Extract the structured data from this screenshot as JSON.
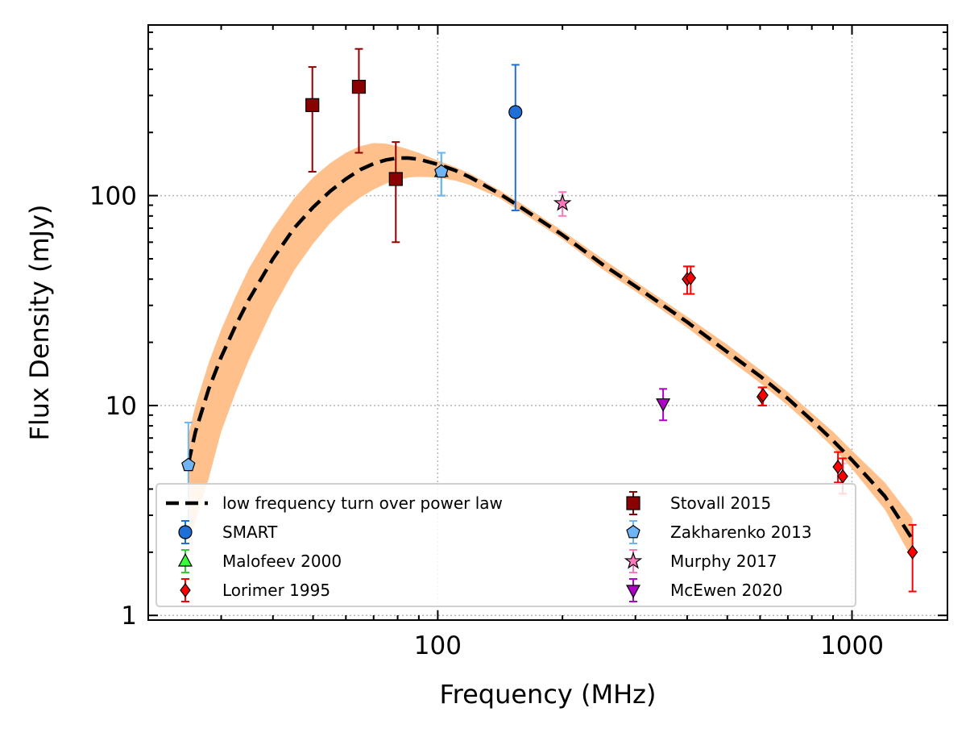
{
  "chart_data": {
    "type": "scatter",
    "xlabel": "Frequency (MHz)",
    "ylabel": "Flux Density (mJy)",
    "xscale": "log",
    "yscale": "log",
    "xlim": [
      20,
      1700
    ],
    "ylim": [
      0.95,
      650
    ],
    "xticks": [
      {
        "value": 100,
        "label": "100"
      },
      {
        "value": 1000,
        "label": "1000"
      }
    ],
    "yticks": [
      {
        "value": 1,
        "label": "1"
      },
      {
        "value": 10,
        "label": "10"
      },
      {
        "value": 100,
        "label": "100"
      }
    ],
    "grid": true,
    "legend_position": "lower-left",
    "model": {
      "name": "low frequency turn over power law",
      "color": "#000000",
      "band_color": "#ffc08c",
      "curve": [
        [
          25,
          5.3
        ],
        [
          26,
          7.5
        ],
        [
          28,
          12
        ],
        [
          30,
          17
        ],
        [
          32.5,
          24
        ],
        [
          35,
          32
        ],
        [
          40,
          50
        ],
        [
          45,
          70
        ],
        [
          50,
          88
        ],
        [
          55,
          105
        ],
        [
          60,
          120
        ],
        [
          65,
          133
        ],
        [
          70,
          142
        ],
        [
          75,
          148
        ],
        [
          80,
          151
        ],
        [
          85,
          151
        ],
        [
          90,
          149
        ],
        [
          100,
          141
        ],
        [
          110,
          132
        ],
        [
          120,
          122
        ],
        [
          140,
          103
        ],
        [
          160,
          87
        ],
        [
          200,
          65
        ],
        [
          250,
          47
        ],
        [
          300,
          37
        ],
        [
          400,
          25
        ],
        [
          500,
          18
        ],
        [
          600,
          13.8
        ],
        [
          700,
          10.8
        ],
        [
          800,
          8.5
        ],
        [
          900,
          6.8
        ],
        [
          1000,
          5.5
        ],
        [
          1200,
          3.7
        ],
        [
          1400,
          2.3
        ]
      ],
      "band_upper": [
        [
          25,
          7.2
        ],
        [
          26,
          10
        ],
        [
          28,
          16
        ],
        [
          30,
          23
        ],
        [
          32.5,
          33
        ],
        [
          35,
          45
        ],
        [
          40,
          70
        ],
        [
          45,
          97
        ],
        [
          50,
          122
        ],
        [
          55,
          143
        ],
        [
          60,
          160
        ],
        [
          65,
          172
        ],
        [
          70,
          178
        ],
        [
          75,
          177
        ],
        [
          80,
          172
        ],
        [
          85,
          166
        ],
        [
          90,
          160
        ],
        [
          100,
          147
        ],
        [
          110,
          137
        ],
        [
          120,
          127
        ],
        [
          140,
          107
        ],
        [
          160,
          91
        ],
        [
          200,
          68
        ],
        [
          250,
          50
        ],
        [
          300,
          39
        ],
        [
          400,
          26.5
        ],
        [
          500,
          19.5
        ],
        [
          600,
          14.8
        ],
        [
          700,
          11.6
        ],
        [
          800,
          9.2
        ],
        [
          900,
          7.5
        ],
        [
          1000,
          6.1
        ],
        [
          1200,
          4.3
        ],
        [
          1400,
          2.9
        ]
      ],
      "band_lower": [
        [
          25,
          2.0
        ],
        [
          26,
          2.8
        ],
        [
          28,
          4.5
        ],
        [
          30,
          7.5
        ],
        [
          32.5,
          11.5
        ],
        [
          35,
          16.5
        ],
        [
          40,
          29
        ],
        [
          45,
          44
        ],
        [
          50,
          59
        ],
        [
          55,
          74
        ],
        [
          60,
          87
        ],
        [
          65,
          98
        ],
        [
          70,
          107
        ],
        [
          75,
          114
        ],
        [
          80,
          119
        ],
        [
          85,
          122
        ],
        [
          90,
          123
        ],
        [
          100,
          122
        ],
        [
          110,
          118
        ],
        [
          120,
          112
        ],
        [
          140,
          98
        ],
        [
          160,
          83
        ],
        [
          200,
          62
        ],
        [
          250,
          44.5
        ],
        [
          300,
          35
        ],
        [
          400,
          23.5
        ],
        [
          500,
          16.8
        ],
        [
          600,
          12.8
        ],
        [
          700,
          10
        ],
        [
          800,
          7.9
        ],
        [
          900,
          6.3
        ],
        [
          1000,
          5.0
        ],
        [
          1200,
          3.2
        ],
        [
          1400,
          1.85
        ]
      ]
    },
    "series": [
      {
        "name": "SMART",
        "marker": "circle",
        "color": "#1f6fd6",
        "errcolor": "#1f6fd6",
        "points": [
          {
            "x": 154,
            "y": 250,
            "lo": 85,
            "hi": 420
          }
        ]
      },
      {
        "name": "Malofeev 2000",
        "marker": "triangle-up",
        "color": "#33ff33",
        "errcolor": "#33cc33",
        "points": [
          {
            "x": 102,
            "y": 130,
            "lo": 100,
            "hi": 160
          }
        ]
      },
      {
        "name": "Lorimer 1995",
        "marker": "diamond",
        "color": "#ff0000",
        "errcolor": "#ff0000",
        "points": [
          {
            "x": 400,
            "y": 40,
            "lo": 34,
            "hi": 46
          },
          {
            "x": 408,
            "y": 40.5,
            "lo": 34,
            "hi": 46
          },
          {
            "x": 606,
            "y": 11,
            "lo": 10,
            "hi": 12.2
          },
          {
            "x": 610,
            "y": 11.2,
            "lo": 10,
            "hi": 12.2
          },
          {
            "x": 925,
            "y": 5.1,
            "lo": 4.3,
            "hi": 6.0
          },
          {
            "x": 950,
            "y": 4.6,
            "lo": 3.8,
            "hi": 5.6
          },
          {
            "x": 1400,
            "y": 2.0,
            "lo": 1.3,
            "hi": 2.7
          }
        ]
      },
      {
        "name": "Stovall 2015",
        "marker": "square",
        "color": "#8b0000",
        "errcolor": "#8b0000",
        "points": [
          {
            "x": 49.8,
            "y": 270,
            "lo": 130,
            "hi": 410
          },
          {
            "x": 64.5,
            "y": 330,
            "lo": 160,
            "hi": 500
          },
          {
            "x": 79.2,
            "y": 120,
            "lo": 60,
            "hi": 180
          }
        ]
      },
      {
        "name": "Zakharenko 2013",
        "marker": "pentagon",
        "color": "#6fb5f5",
        "errcolor": "#6fb5f5",
        "points": [
          {
            "x": 25,
            "y": 5.2,
            "lo": 2.8,
            "hi": 8.3
          },
          {
            "x": 102,
            "y": 130,
            "lo": 100,
            "hi": 160
          }
        ]
      },
      {
        "name": "Murphy 2017",
        "marker": "star",
        "color": "#ff77bb",
        "errcolor": "#ff77bb",
        "points": [
          {
            "x": 200,
            "y": 92,
            "lo": 80,
            "hi": 104
          }
        ]
      },
      {
        "name": "McEwen 2020",
        "marker": "triangle-down",
        "color": "#b000c8",
        "errcolor": "#b000c8",
        "points": [
          {
            "x": 350,
            "y": 10.2,
            "lo": 8.5,
            "hi": 12
          }
        ]
      }
    ],
    "extra_points": [
      {
        "marker": "error-only",
        "color": "#ffc8c8",
        "x": 950,
        "y": 4.5,
        "lo": 3.7,
        "hi": 5.3
      }
    ],
    "legend": {
      "columns": [
        [
          "low frequency turn over power law",
          "SMART",
          "Malofeev 2000",
          "Lorimer 1995"
        ],
        [
          "Stovall 2015",
          "Zakharenko 2013",
          "Murphy 2017",
          "McEwen 2020"
        ]
      ]
    }
  }
}
